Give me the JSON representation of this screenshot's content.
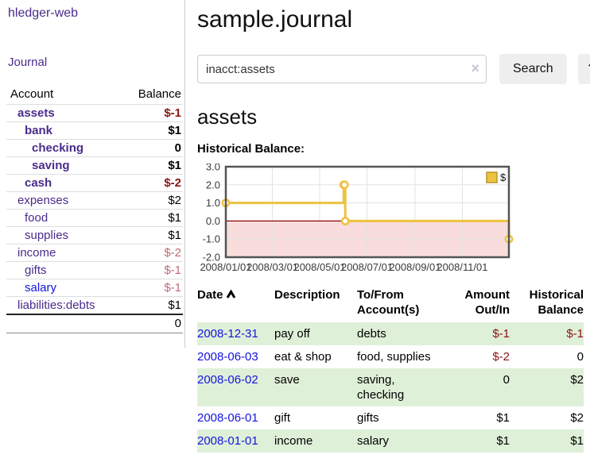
{
  "colors": {
    "purple": "#4a2b8c",
    "blue": "#1414e0",
    "neg": "#8b1414",
    "negm": "#c06b76",
    "stripe": "#dff0d8",
    "divider": "#cccccc",
    "gold": "#edc240"
  },
  "sidebar": {
    "brand": "hledger-web",
    "nav": {
      "journal": "Journal"
    },
    "accounts_table": {
      "headers": {
        "account": "Account",
        "balance": "Balance"
      },
      "rows": [
        {
          "name": "assets",
          "depth": 1,
          "bold": true,
          "balance": "$-1",
          "balance_color": "negative"
        },
        {
          "name": "bank",
          "depth": 2,
          "bold": true,
          "balance": "$1",
          "balance_color": "normal"
        },
        {
          "name": "checking",
          "depth": 3,
          "bold": true,
          "balance": "0",
          "balance_color": "normal"
        },
        {
          "name": "saving",
          "depth": 3,
          "bold": true,
          "balance": "$1",
          "balance_color": "normal"
        },
        {
          "name": "cash",
          "depth": 2,
          "bold": true,
          "balance": "$-2",
          "balance_color": "negative"
        },
        {
          "name": "expenses",
          "depth": 1,
          "bold": false,
          "balance": "$2",
          "balance_color": "normal"
        },
        {
          "name": "food",
          "depth": 2,
          "bold": false,
          "balance": "$1",
          "balance_color": "normal"
        },
        {
          "name": "supplies",
          "depth": 2,
          "bold": false,
          "balance": "$1",
          "balance_color": "normal"
        },
        {
          "name": "income",
          "depth": 1,
          "bold": false,
          "balance": "$-2",
          "balance_color": "negative-muted"
        },
        {
          "name": "gifts",
          "depth": 2,
          "bold": false,
          "balance": "$-1",
          "balance_color": "negative-muted"
        },
        {
          "name": "salary",
          "depth": 2,
          "bold": false,
          "balance": "$-1",
          "balance_color": "negative-muted",
          "link_color": "blue"
        },
        {
          "name": "liabilities:debts",
          "depth": 1,
          "bold": false,
          "balance": "$1",
          "balance_color": "normal"
        }
      ],
      "total": "0"
    }
  },
  "header": {
    "title": "sample.journal"
  },
  "search": {
    "query": "inacct:assets",
    "clear_icon": "×",
    "search_label": "Search",
    "help_label": "?"
  },
  "account_page": {
    "heading": "assets",
    "chart_title": "Historical Balance:"
  },
  "chart_data": {
    "type": "line",
    "style": "step-after",
    "title": "Historical Balance:",
    "series": [
      {
        "name": "$",
        "color": "#edc240",
        "points": [
          {
            "date": "2008-01-01",
            "value": 1
          },
          {
            "date": "2008-06-01",
            "value": 2
          },
          {
            "date": "2008-06-02",
            "value": 2
          },
          {
            "date": "2008-06-03",
            "value": 0
          },
          {
            "date": "2008-12-31",
            "value": -1
          }
        ]
      }
    ],
    "x_ticks": [
      "2008/01/01",
      "2008/03/01",
      "2008/05/01",
      "2008/07/01",
      "2008/09/01",
      "2008/11/01"
    ],
    "y_ticks": [
      3.0,
      2.0,
      1.0,
      0.0,
      -1.0,
      -2.0
    ],
    "ylim": [
      -2.0,
      3.0
    ],
    "x_range": [
      "2008-01-01",
      "2008-12-31"
    ],
    "grid": true,
    "negative_region_color": "#f9dcdc",
    "zero_line_color": "#8b0000",
    "legend": {
      "label": "$",
      "position": "top-right"
    }
  },
  "register": {
    "headers": {
      "date": "Date",
      "description": "Description",
      "accounts": "To/From Account(s)",
      "amount": "Amount Out/In",
      "balance": "Historical Balance"
    },
    "rows": [
      {
        "date": "2008-12-31",
        "description": "pay off",
        "accounts": "debts",
        "amount": "$-1",
        "amount_neg": true,
        "balance": "$-1",
        "balance_neg": true
      },
      {
        "date": "2008-06-03",
        "description": "eat & shop",
        "accounts": "food, supplies",
        "amount": "$-2",
        "amount_neg": true,
        "balance": "0",
        "balance_neg": false
      },
      {
        "date": "2008-06-02",
        "description": "save",
        "accounts": "saving, checking",
        "amount": "0",
        "amount_neg": false,
        "balance": "$2",
        "balance_neg": false
      },
      {
        "date": "2008-06-01",
        "description": "gift",
        "accounts": "gifts",
        "amount": "$1",
        "amount_neg": false,
        "balance": "$2",
        "balance_neg": false
      },
      {
        "date": "2008-01-01",
        "description": "income",
        "accounts": "salary",
        "amount": "$1",
        "amount_neg": false,
        "balance": "$1",
        "balance_neg": false
      }
    ]
  }
}
